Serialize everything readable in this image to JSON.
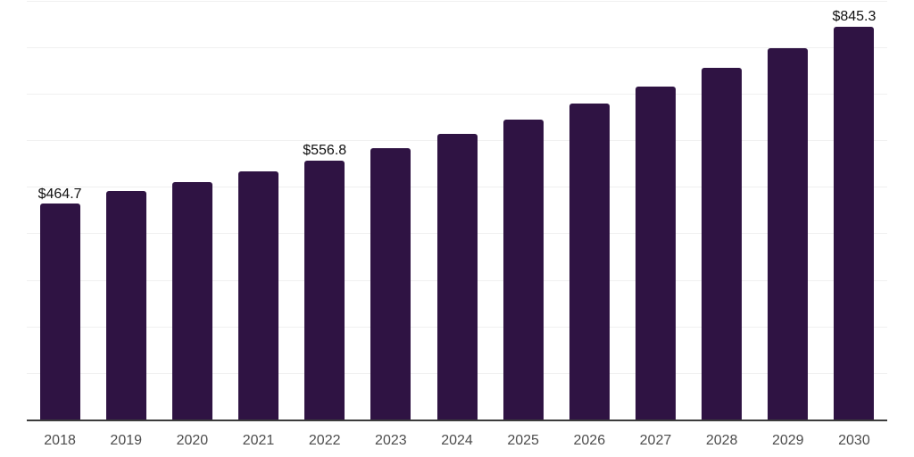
{
  "chart_data": {
    "type": "bar",
    "title": "",
    "xlabel": "",
    "ylabel": "",
    "categories": [
      "2018",
      "2019",
      "2020",
      "2021",
      "2022",
      "2023",
      "2024",
      "2025",
      "2026",
      "2027",
      "2028",
      "2029",
      "2030"
    ],
    "values": [
      464.7,
      492,
      510,
      533,
      556.8,
      584,
      614,
      645,
      679,
      716,
      756,
      798,
      845.3
    ],
    "data_labels": [
      "$464.7",
      "",
      "",
      "",
      "$556.8",
      "",
      "",
      "",
      "",
      "",
      "",
      "",
      "$845.3"
    ],
    "value_prefix": "$",
    "ylim": [
      0,
      900
    ],
    "grid_interval": 100,
    "grid": "horizontal-only",
    "legend": "none",
    "y_tick_labels_visible": false
  },
  "colors": {
    "bar": "#2f1343",
    "grid_line": "#f0f0f0",
    "axis_line": "#3c3c3c",
    "tick_label": "#4d4d4d",
    "value_label": "#111111",
    "background": "#ffffff"
  }
}
